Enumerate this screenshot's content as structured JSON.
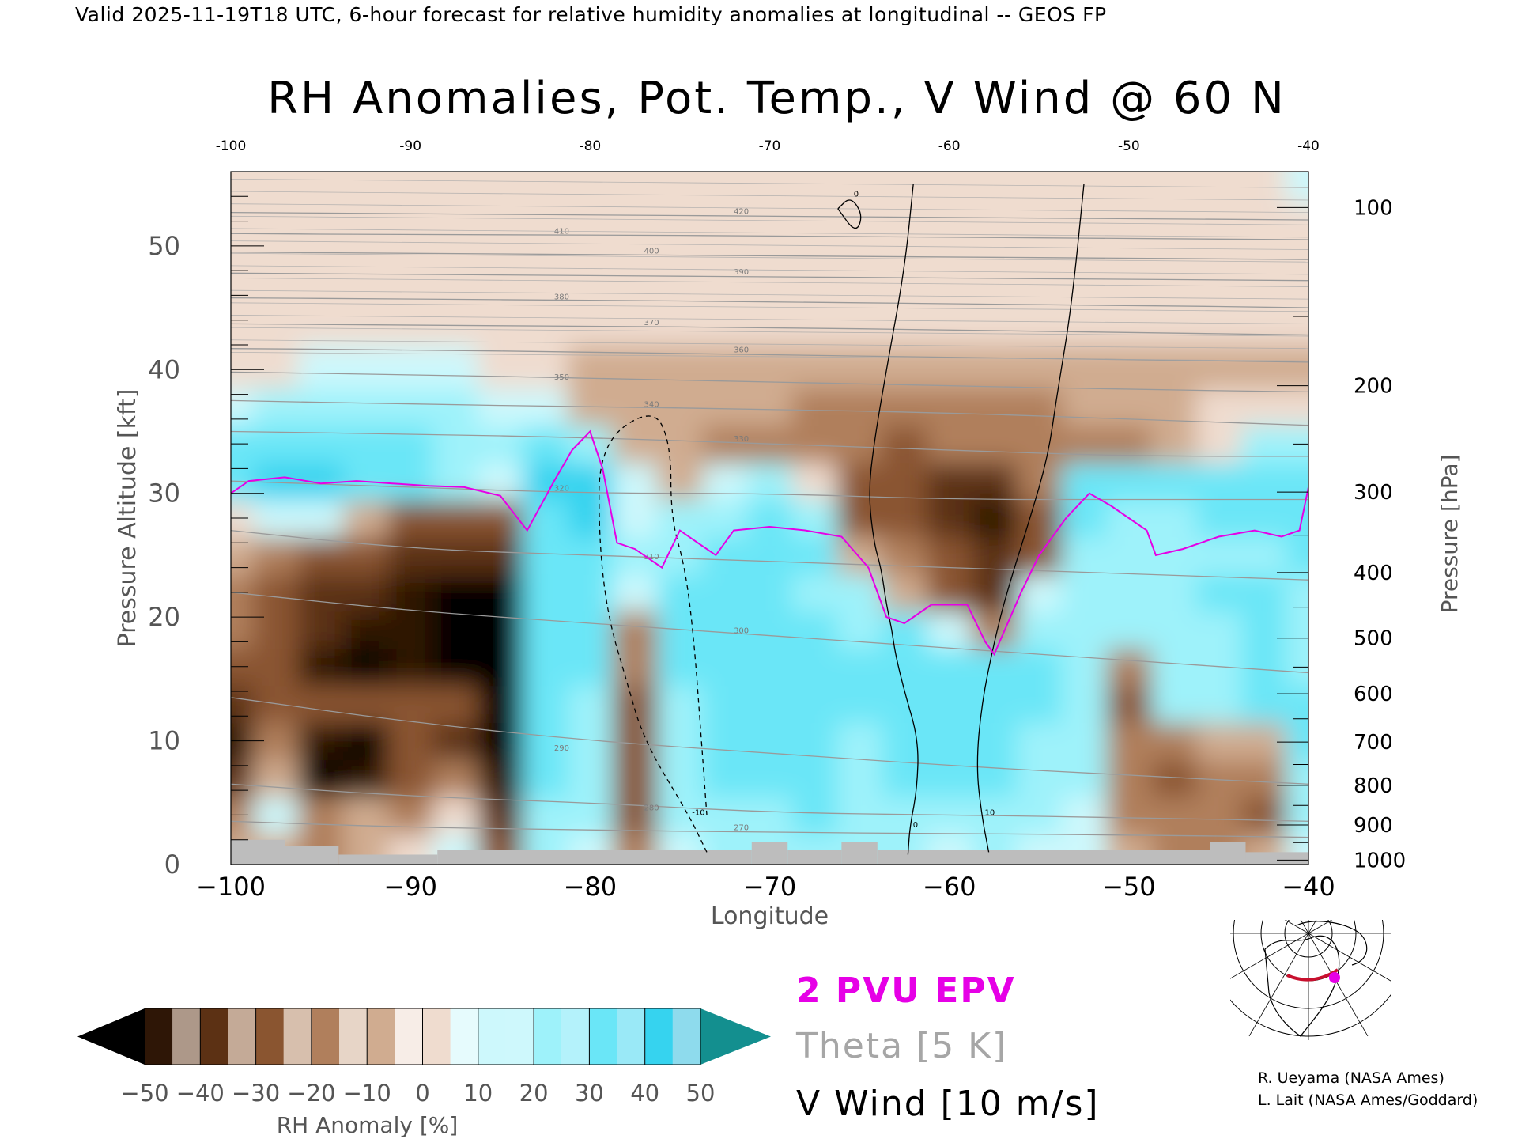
{
  "header": {
    "valid_line": "Valid 2025-11-19T18 UTC, 6-hour forecast for relative humidity anomalies at longitudinal -- GEOS FP"
  },
  "chart_data": {
    "type": "heatmap",
    "title": "RH Anomalies, Pot. Temp., V Wind @ 60 N",
    "xlabel": "Longitude",
    "ylabel": "Pressure Altitude [kft]",
    "y2label": "Pressure [hPa]",
    "xlim": [
      -100,
      -40
    ],
    "ylim": [
      0,
      56
    ],
    "x_ticks": [
      -100,
      -90,
      -80,
      -70,
      -60,
      -50,
      -40
    ],
    "x_tick_labels": [
      "−100",
      "−90",
      "−80",
      "−70",
      "−60",
      "−50",
      "−40"
    ],
    "top_x_tick_labels": [
      "-100",
      "-90",
      "-80",
      "-70",
      "-60",
      "-50",
      "-40"
    ],
    "y_ticks": [
      0,
      10,
      20,
      30,
      40,
      50
    ],
    "pressure_ticks": [
      {
        "hpa": 100,
        "kft": 53.1
      },
      {
        "hpa": 200,
        "kft": 38.7
      },
      {
        "hpa": 300,
        "kft": 30.1
      },
      {
        "hpa": 400,
        "kft": 23.6
      },
      {
        "hpa": 500,
        "kft": 18.3
      },
      {
        "hpa": 600,
        "kft": 13.8
      },
      {
        "hpa": 700,
        "kft": 9.9
      },
      {
        "hpa": 800,
        "kft": 6.4
      },
      {
        "hpa": 900,
        "kft": 3.2
      },
      {
        "hpa": 1000,
        "kft": 0.36
      }
    ],
    "colorbar": {
      "label": "RH Anomaly [%]",
      "levels": [
        -50,
        -40,
        -30,
        -20,
        -10,
        0,
        10,
        20,
        30,
        40,
        50
      ],
      "tick_labels": [
        "−50",
        "−40",
        "−30",
        "−20",
        "−10",
        "0",
        "10",
        "20",
        "30",
        "40",
        "50"
      ],
      "colors": [
        "#2e1606",
        "#5c3114",
        "#8a5530",
        "#b07f5c",
        "#d0ac90",
        "#efdccf",
        "#cdf8fc",
        "#9ef2fa",
        "#6ae6f7",
        "#36d3ef",
        "#1eb8dc",
        "#0b8ba8"
      ],
      "under_color": "#000000",
      "over_color": "#138f8f"
    },
    "rh_anomaly_field": {
      "rows_kft": [
        1,
        4,
        7,
        10,
        13,
        16,
        19,
        22,
        25,
        28,
        31,
        34,
        37,
        40,
        44,
        48,
        52,
        55
      ],
      "cols_lon": [
        -100,
        -97.5,
        -95,
        -92.5,
        -90,
        -87.5,
        -85,
        -82.5,
        -80,
        -77.5,
        -75,
        -72.5,
        -70,
        -67.5,
        -65,
        -62.5,
        -60,
        -57.5,
        -55,
        -52.5,
        -50,
        -47.5,
        -45,
        -42.5,
        -40
      ],
      "values": [
        [
          -10,
          -5,
          -15,
          -5,
          5,
          10,
          -25,
          20,
          15,
          -20,
          15,
          20,
          20,
          25,
          20,
          20,
          15,
          20,
          15,
          10,
          -10,
          -15,
          -20,
          -10,
          10
        ],
        [
          -20,
          10,
          -15,
          -10,
          -20,
          5,
          -35,
          20,
          20,
          -30,
          20,
          25,
          25,
          30,
          25,
          25,
          25,
          25,
          20,
          15,
          -15,
          -20,
          -20,
          -25,
          20
        ],
        [
          -40,
          -5,
          -55,
          -50,
          -30,
          -20,
          -45,
          30,
          25,
          -30,
          20,
          30,
          30,
          30,
          25,
          30,
          30,
          30,
          25,
          25,
          -15,
          -30,
          -20,
          -20,
          25
        ],
        [
          -45,
          -20,
          -45,
          -55,
          -30,
          -40,
          -55,
          35,
          25,
          -25,
          20,
          30,
          30,
          30,
          25,
          30,
          30,
          30,
          25,
          25,
          -20,
          -20,
          -10,
          -10,
          30
        ],
        [
          -40,
          -25,
          -30,
          -25,
          -30,
          -30,
          -55,
          35,
          25,
          -25,
          25,
          30,
          30,
          30,
          30,
          30,
          30,
          30,
          30,
          25,
          -25,
          20,
          25,
          30,
          30
        ],
        [
          -30,
          -30,
          -45,
          -60,
          -50,
          -55,
          -60,
          35,
          30,
          -20,
          30,
          30,
          30,
          30,
          30,
          30,
          30,
          30,
          30,
          25,
          -20,
          25,
          25,
          30,
          25
        ],
        [
          -20,
          -30,
          -35,
          -50,
          -45,
          -55,
          -60,
          35,
          30,
          -15,
          30,
          30,
          30,
          30,
          25,
          30,
          15,
          -20,
          25,
          25,
          20,
          25,
          25,
          30,
          20
        ],
        [
          -15,
          -25,
          -40,
          -40,
          -45,
          -55,
          -55,
          35,
          35,
          15,
          30,
          30,
          30,
          25,
          20,
          -5,
          -25,
          -35,
          15,
          20,
          25,
          25,
          30,
          30,
          20
        ],
        [
          -5,
          -15,
          -25,
          -30,
          -35,
          -40,
          -40,
          35,
          35,
          20,
          25,
          30,
          30,
          30,
          -5,
          -20,
          -30,
          -40,
          -25,
          25,
          20,
          25,
          25,
          25,
          30
        ],
        [
          5,
          15,
          10,
          -5,
          -25,
          -25,
          -25,
          30,
          40,
          15,
          20,
          25,
          30,
          20,
          -25,
          -30,
          -40,
          -45,
          -30,
          35,
          25,
          25,
          30,
          30,
          35
        ],
        [
          35,
          40,
          40,
          35,
          30,
          25,
          10,
          45,
          45,
          10,
          -10,
          10,
          25,
          5,
          -25,
          -30,
          -35,
          -35,
          -15,
          35,
          35,
          30,
          30,
          30,
          35
        ],
        [
          30,
          30,
          35,
          35,
          30,
          25,
          20,
          30,
          25,
          -5,
          -10,
          -15,
          -15,
          -20,
          -20,
          -25,
          -20,
          -20,
          -20,
          -15,
          -15,
          -5,
          5,
          25,
          25
        ],
        [
          15,
          20,
          25,
          20,
          20,
          20,
          15,
          10,
          -5,
          -10,
          -10,
          -10,
          -10,
          -15,
          -15,
          -20,
          -15,
          -15,
          -15,
          -10,
          -10,
          -5,
          0,
          5,
          5
        ],
        [
          0,
          5,
          10,
          10,
          10,
          10,
          5,
          0,
          -5,
          -5,
          -5,
          -5,
          -5,
          -5,
          -5,
          -5,
          -5,
          -5,
          -5,
          -5,
          -5,
          -5,
          -5,
          -5,
          -5
        ],
        [
          0,
          0,
          0,
          0,
          0,
          0,
          0,
          0,
          0,
          0,
          0,
          0,
          0,
          0,
          0,
          0,
          0,
          0,
          0,
          0,
          0,
          0,
          0,
          0,
          0
        ],
        [
          0,
          0,
          0,
          0,
          0,
          0,
          0,
          0,
          0,
          0,
          0,
          0,
          0,
          0,
          0,
          0,
          0,
          0,
          0,
          0,
          0,
          0,
          0,
          0,
          0
        ],
        [
          0,
          0,
          0,
          0,
          0,
          0,
          0,
          0,
          0,
          0,
          0,
          0,
          0,
          0,
          0,
          0,
          0,
          0,
          0,
          0,
          0,
          0,
          0,
          0,
          5
        ],
        [
          0,
          0,
          0,
          0,
          0,
          0,
          0,
          0,
          0,
          0,
          0,
          0,
          0,
          0,
          0,
          0,
          0,
          0,
          0,
          0,
          0,
          0,
          0,
          5,
          10
        ]
      ]
    },
    "theta_contours": [
      {
        "label": "270",
        "lon": [
          -100,
          -90,
          -80,
          -70,
          -60,
          -50,
          -40
        ],
        "kft": [
          3.5,
          3.0,
          2.8,
          2.6,
          2.5,
          2.4,
          2.2
        ]
      },
      {
        "label": "280",
        "lon": [
          -100,
          -90,
          -80,
          -70,
          -60,
          -50,
          -40
        ],
        "kft": [
          6.5,
          5.5,
          5.0,
          4.2,
          4.0,
          3.8,
          3.5
        ]
      },
      {
        "label": "290",
        "lon": [
          -100,
          -90,
          -80,
          -70,
          -60,
          -50,
          -40
        ],
        "kft": [
          13.5,
          11.5,
          10.0,
          9.0,
          8.0,
          7.2,
          6.5
        ]
      },
      {
        "label": "300",
        "lon": [
          -100,
          -90,
          -80,
          -70,
          -60,
          -50,
          -40
        ],
        "kft": [
          22.0,
          20.5,
          19.5,
          18.5,
          17.5,
          16.5,
          15.5
        ]
      },
      {
        "label": "310",
        "lon": [
          -100,
          -90,
          -80,
          -70,
          -60,
          -50,
          -40
        ],
        "kft": [
          27.0,
          25.5,
          25.0,
          24.5,
          24.0,
          23.5,
          23.0
        ]
      },
      {
        "label": "320",
        "lon": [
          -100,
          -90,
          -80,
          -70,
          -60,
          -50,
          -40
        ],
        "kft": [
          31.0,
          30.5,
          30.0,
          30.0,
          29.5,
          29.5,
          29.5
        ]
      },
      {
        "label": "330",
        "lon": [
          -100,
          -90,
          -80,
          -70,
          -60,
          -50,
          -40
        ],
        "kft": [
          35.0,
          34.8,
          34.5,
          34.0,
          33.5,
          33.0,
          33.0
        ]
      },
      {
        "label": "340",
        "lon": [
          -100,
          -90,
          -80,
          -70,
          -60,
          -50,
          -40
        ],
        "kft": [
          37.5,
          37.2,
          37.0,
          36.8,
          36.5,
          36.0,
          35.5
        ]
      },
      {
        "label": "350",
        "lon": [
          -100,
          -90,
          -80,
          -70,
          -60,
          -50,
          -40
        ],
        "kft": [
          39.8,
          39.6,
          39.3,
          39.0,
          38.7,
          38.4,
          38.2
        ]
      },
      {
        "label": "360",
        "lon": [
          -100,
          -90,
          -80,
          -70,
          -60,
          -50,
          -40
        ],
        "kft": [
          41.7,
          41.6,
          41.4,
          41.2,
          41.0,
          40.8,
          40.6
        ]
      },
      {
        "label": "370",
        "lon": [
          -100,
          -90,
          -80,
          -70,
          -60,
          -50,
          -40
        ],
        "kft": [
          43.7,
          43.6,
          43.5,
          43.4,
          43.2,
          43.0,
          42.8
        ]
      },
      {
        "label": "380",
        "lon": [
          -100,
          -90,
          -80,
          -70,
          -60,
          -50,
          -40
        ],
        "kft": [
          45.8,
          45.7,
          45.6,
          45.5,
          45.3,
          45.2,
          45.0
        ]
      },
      {
        "label": "390",
        "lon": [
          -100,
          -90,
          -80,
          -70,
          -60,
          -50,
          -40
        ],
        "kft": [
          47.8,
          47.7,
          47.6,
          47.5,
          47.4,
          47.3,
          47.2
        ]
      },
      {
        "label": "400",
        "lon": [
          -100,
          -90,
          -80,
          -70,
          -60,
          -50,
          -40
        ],
        "kft": [
          49.5,
          49.4,
          49.3,
          49.2,
          49.1,
          49.0,
          48.9
        ]
      },
      {
        "label": "410",
        "lon": [
          -100,
          -90,
          -80,
          -70,
          -60,
          -50,
          -40
        ],
        "kft": [
          51.0,
          50.9,
          50.9,
          50.8,
          50.7,
          50.6,
          50.5
        ]
      },
      {
        "label": "420",
        "lon": [
          -100,
          -90,
          -80,
          -70,
          -60,
          -50,
          -40
        ],
        "kft": [
          52.7,
          52.6,
          52.5,
          52.4,
          52.3,
          52.2,
          52.1
        ]
      }
    ],
    "epv_2pvu_line": {
      "name": "2 PVU EPV",
      "lon": [
        -100,
        -99,
        -97,
        -95,
        -93,
        -91,
        -89,
        -87,
        -85,
        -83.5,
        -82,
        -81,
        -80,
        -79.3,
        -78.5,
        -77.5,
        -76,
        -75,
        -74,
        -73,
        -72,
        -70,
        -68,
        -66,
        -64.5,
        -63.5,
        -62.5,
        -61,
        -59,
        -58,
        -57.5,
        -56,
        -55,
        -53.5,
        -52.2,
        -51,
        -50,
        -49,
        -48.5,
        -47,
        -45,
        -43,
        -41.5,
        -40.5,
        -40
      ],
      "kft": [
        30,
        31,
        31.3,
        30.8,
        31,
        30.8,
        30.6,
        30.5,
        29.8,
        27,
        31,
        33.5,
        35,
        32,
        26,
        25.5,
        24,
        27,
        26,
        25,
        27,
        27.3,
        27,
        26.5,
        24,
        20,
        19.5,
        21,
        21,
        18,
        17,
        22,
        25,
        28,
        30,
        29,
        28,
        27,
        25,
        25.5,
        26.5,
        27,
        26.5,
        27,
        30.5
      ]
    },
    "v_wind_contours": [
      {
        "label": "0",
        "lon": [
          -62.3,
          -62.2,
          -61.8,
          -61.7,
          -62.5,
          -63,
          -63.2,
          -63.5,
          -63.8,
          -64.2,
          -64.5,
          -64.2,
          -63.5,
          -62.5,
          -62
        ],
        "kft": [
          0.8,
          3,
          6,
          10,
          14,
          17,
          19,
          21,
          24,
          26,
          30,
          34,
          40,
          48,
          55
        ]
      },
      {
        "label": "10",
        "lon": [
          -57.8,
          -58.2,
          -58.5,
          -58.2,
          -57.5,
          -56.8,
          -55.5,
          -54.5,
          -54,
          -53.2,
          -52.5
        ],
        "kft": [
          1,
          4,
          8,
          13,
          18,
          22,
          28,
          33,
          38,
          45,
          55
        ]
      },
      {
        "label": "0",
        "lon": [
          -66.2,
          -65.5,
          -64.8,
          -65.2,
          -66.2
        ],
        "kft": [
          53,
          54,
          52.5,
          51,
          53
        ]
      },
      {
        "label": "-10",
        "lon": [
          -73.5,
          -74.5,
          -77,
          -78,
          -79,
          -79.5,
          -79.5,
          -76.5,
          -75.5,
          -75.5,
          -74.7,
          -74.2,
          -73.8,
          -73.5
        ],
        "kft": [
          1,
          4,
          10,
          15,
          20,
          26,
          34,
          37,
          34,
          28,
          24,
          18,
          10,
          4
        ]
      }
    ],
    "terrain": "grey surface blocks along 0–2 kft"
  },
  "legend": {
    "epv": "2 PVU EPV",
    "theta": "Theta [5 K]",
    "vwind": "V Wind [10 m/s]"
  },
  "credits": {
    "line1": "R. Ueyama (NASA Ames)",
    "line2": "L. Lait (NASA Ames/Goddard)"
  },
  "colors": {
    "epv": "#e600e6",
    "theta": "#9a9a9a",
    "vwind": "#000000",
    "terrain": "#bdbdbd",
    "section_line": "#c8102e",
    "section_point": "#e600e6"
  },
  "inset_map": {
    "icon": "north-polar-projection-map-icon"
  }
}
